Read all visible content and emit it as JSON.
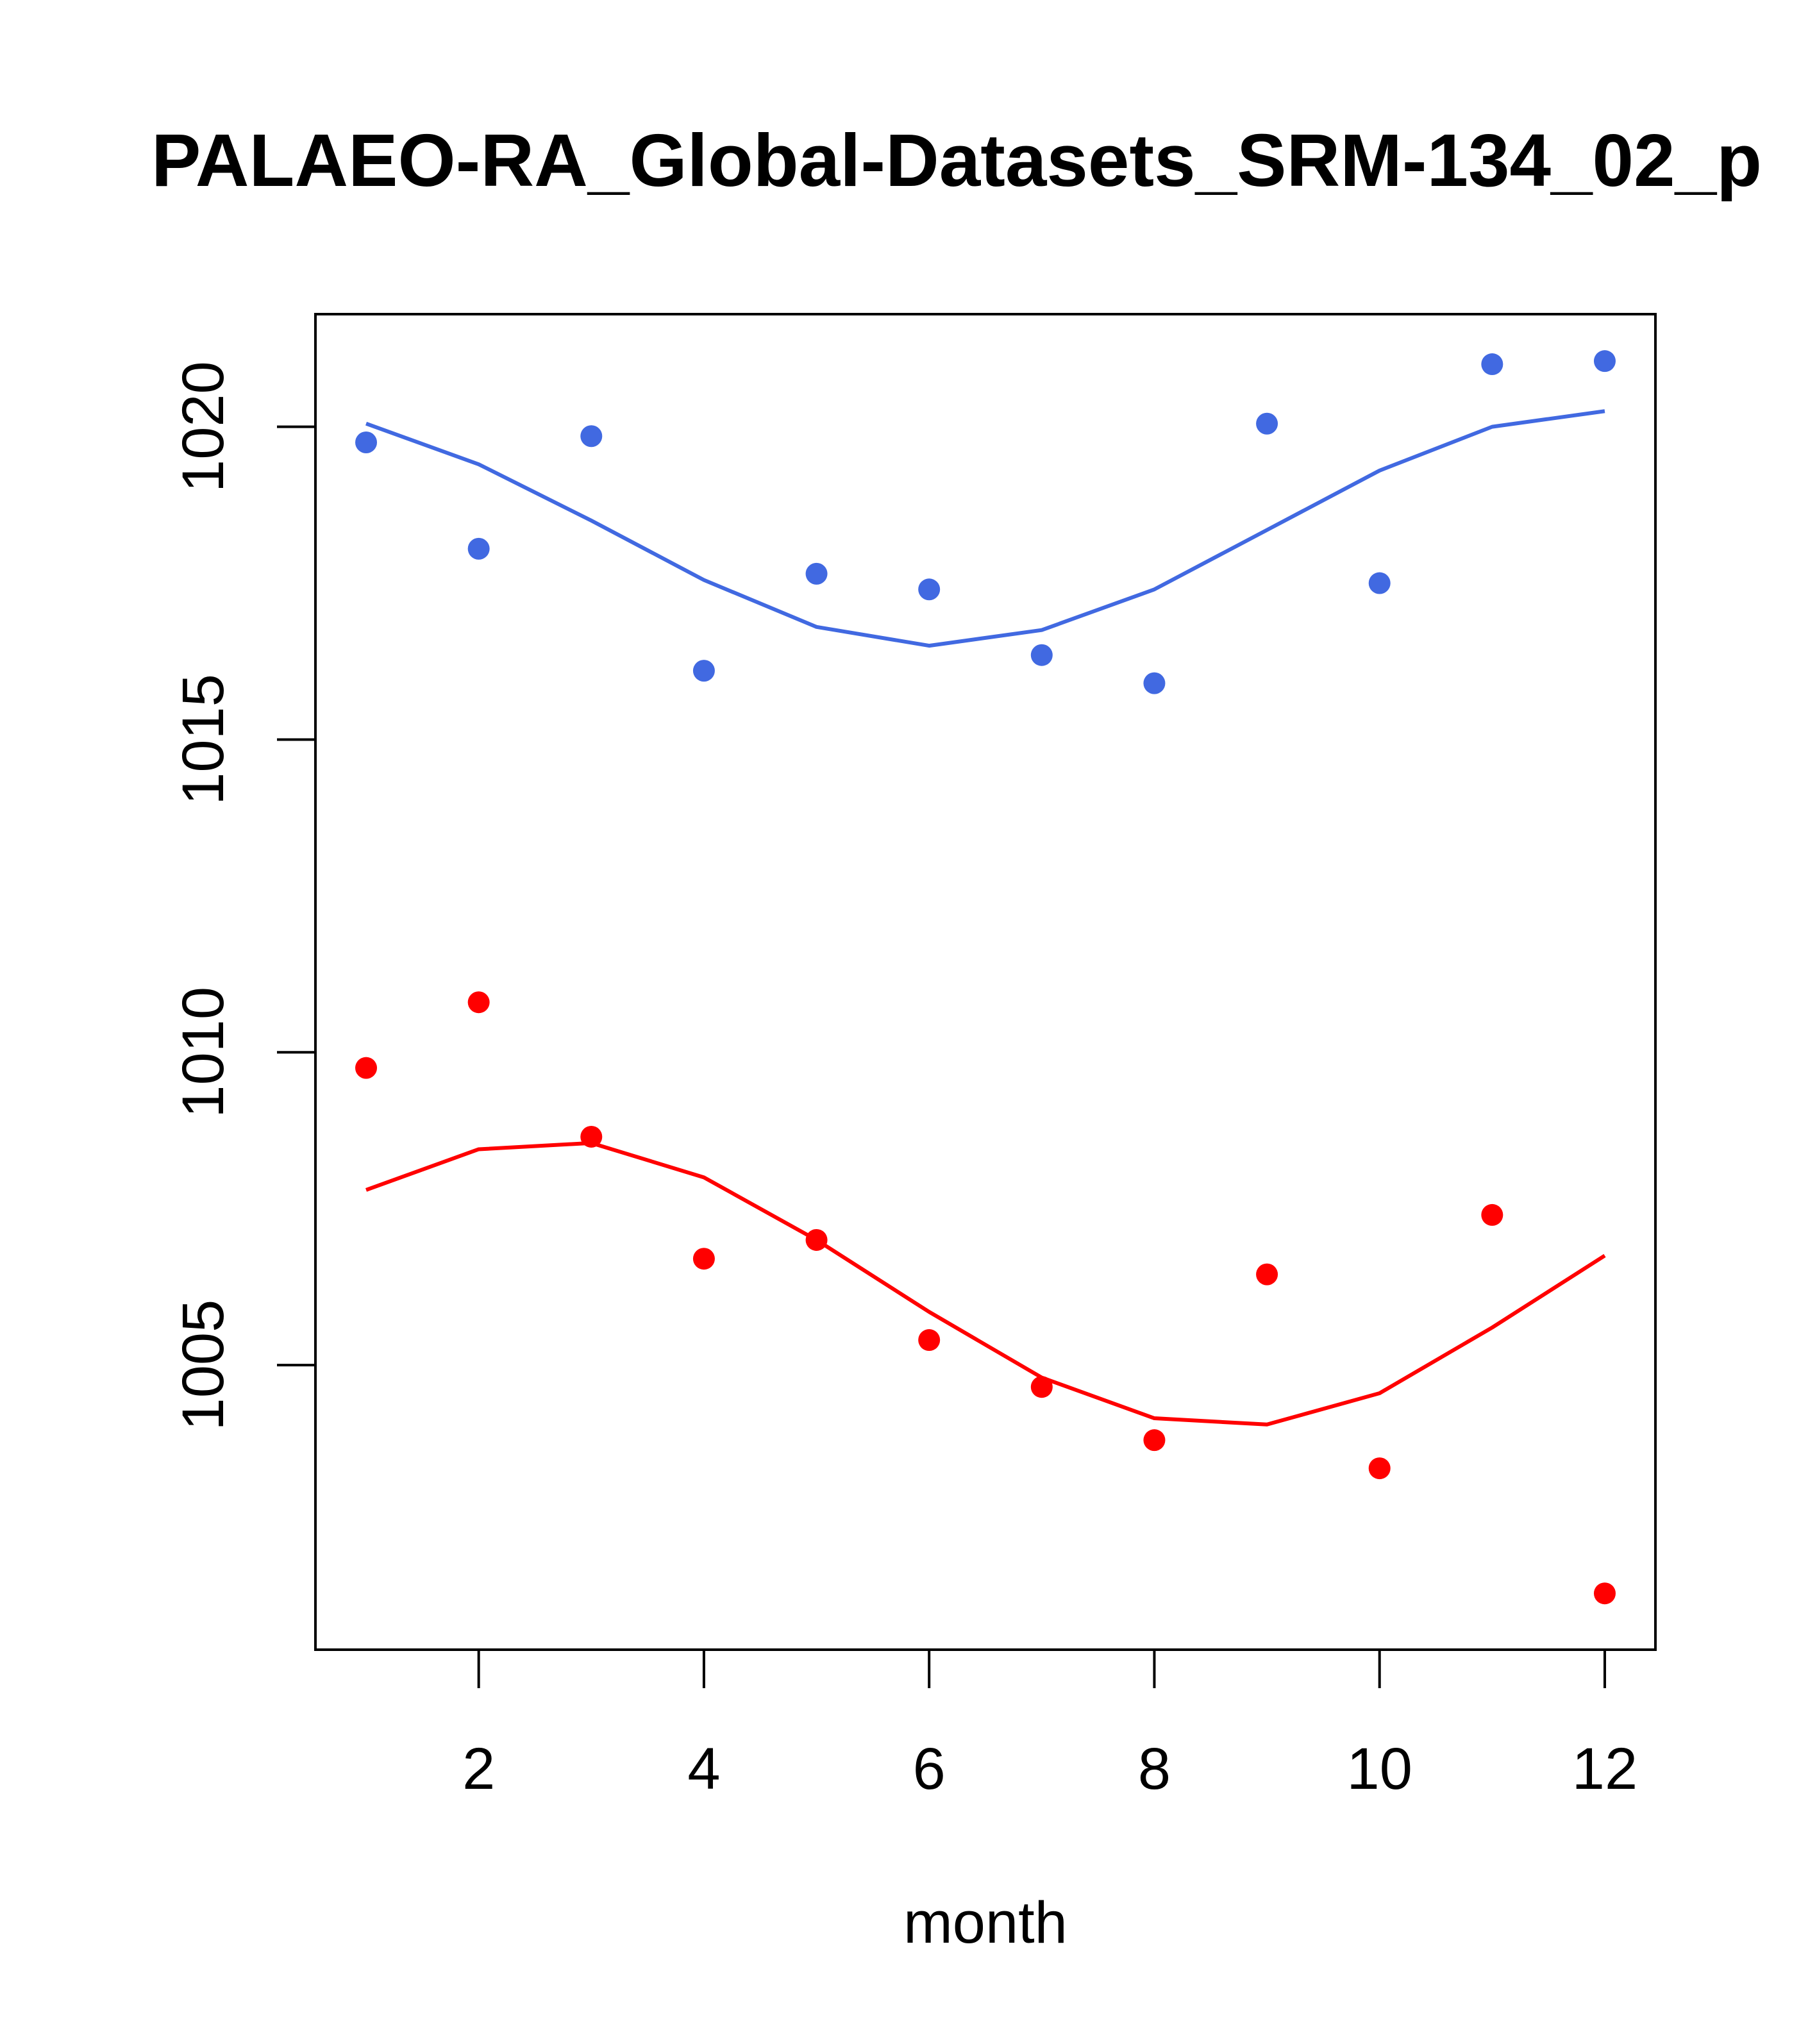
{
  "chart_data": {
    "type": "scatter",
    "title": "PALAEO-RA_Global-Datasets_SRM-134_02_p",
    "xlabel": "month",
    "ylabel": "",
    "xlim": [
      0.55,
      12.45
    ],
    "ylim": [
      1000.45,
      1021.8
    ],
    "x_ticks": [
      2,
      4,
      6,
      8,
      10,
      12
    ],
    "y_ticks": [
      1005,
      1010,
      1015,
      1020
    ],
    "legend": "none",
    "series": [
      {
        "name": "blue observations",
        "kind": "points",
        "color": "#4169E1",
        "x": [
          1,
          2,
          3,
          4,
          5,
          6,
          7,
          8,
          9,
          10,
          11,
          12
        ],
        "values": [
          1019.75,
          1018.05,
          1019.85,
          1016.1,
          1017.65,
          1017.4,
          1016.35,
          1015.9,
          1020.05,
          1017.5,
          1021.0,
          1021.05
        ]
      },
      {
        "name": "blue fit",
        "kind": "line",
        "color": "#4169E1",
        "x": [
          1,
          2,
          3,
          4,
          5,
          6,
          7,
          8,
          9,
          10,
          11,
          12
        ],
        "values": [
          1020.05,
          1019.4,
          1018.5,
          1017.55,
          1016.8,
          1016.5,
          1016.75,
          1017.4,
          1018.35,
          1019.3,
          1020.0,
          1020.25
        ]
      },
      {
        "name": "red observations",
        "kind": "points",
        "color": "#FF0000",
        "x": [
          1,
          2,
          3,
          4,
          5,
          6,
          7,
          8,
          9,
          10,
          11,
          12
        ],
        "values": [
          1009.75,
          1010.8,
          1008.65,
          1006.7,
          1007.0,
          1005.4,
          1004.65,
          1003.8,
          1006.45,
          1003.35,
          1007.4,
          1001.35
        ]
      },
      {
        "name": "red fit",
        "kind": "line",
        "color": "#FF0000",
        "x": [
          1,
          2,
          3,
          4,
          5,
          6,
          7,
          8,
          9,
          10,
          11,
          12
        ],
        "values": [
          1007.8,
          1008.45,
          1008.55,
          1008.0,
          1007.0,
          1005.85,
          1004.8,
          1004.15,
          1004.05,
          1004.55,
          1005.6,
          1006.75
        ]
      }
    ]
  }
}
